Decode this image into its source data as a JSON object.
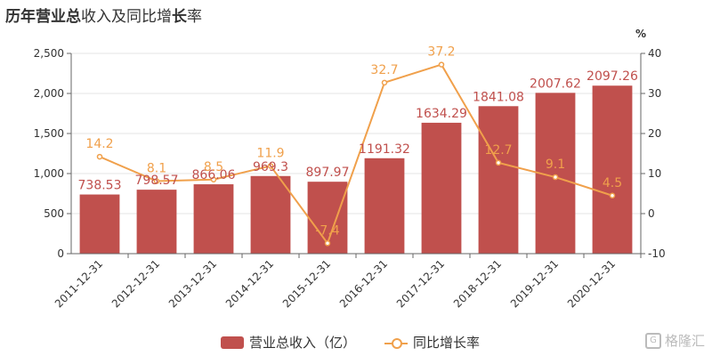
{
  "title": {
    "part1": "历年营业总",
    "part2": "收入及同比增",
    "part3": "长",
    "part4": "率"
  },
  "watermark": "格隆汇",
  "colors": {
    "bar": "#c0504d",
    "line": "#f0a04b",
    "bar_label": "#c0504d",
    "line_label": "#f0a04b"
  },
  "chart_data": {
    "type": "bar",
    "categories": [
      "2011-12-31",
      "2012-12-31",
      "2013-12-31",
      "2014-12-31",
      "2015-12-31",
      "2016-12-31",
      "2017-12-31",
      "2018-12-31",
      "2019-12-31",
      "2020-12-31"
    ],
    "series": [
      {
        "name": "营业总收入（亿）",
        "type": "bar",
        "axis": "left",
        "values": [
          738.53,
          798.57,
          866.06,
          969.3,
          897.97,
          1191.32,
          1634.29,
          1841.08,
          2007.62,
          2097.26
        ],
        "labels": [
          "738.53",
          "798.57",
          "866.06",
          "969.3",
          "897.97",
          "1191.32",
          "1634.29",
          "1841.08",
          "2007.62",
          "2097.26"
        ]
      },
      {
        "name": "同比增长率",
        "type": "line",
        "axis": "right",
        "values": [
          14.2,
          8.1,
          8.5,
          11.9,
          -7.4,
          32.7,
          37.2,
          12.7,
          9.1,
          4.5
        ],
        "labels": [
          "14.2",
          "8.1",
          "8.5",
          "11.9",
          "-7.4",
          "32.7",
          "37.2",
          "12.7",
          "9.1",
          "4.5"
        ]
      }
    ],
    "y_left": {
      "ylim": [
        0,
        2500
      ],
      "ticks": [
        0,
        500,
        1000,
        1500,
        2000,
        2500
      ],
      "tick_labels": [
        "0",
        "500",
        "1,000",
        "1,500",
        "2,000",
        "2,500"
      ]
    },
    "y_right": {
      "ylim": [
        -10,
        40
      ],
      "ticks": [
        -10,
        0,
        10,
        20,
        30,
        40
      ],
      "tick_labels": [
        "-10",
        "0",
        "10",
        "20",
        "30",
        "40"
      ],
      "unit_label": "%"
    },
    "grid": "horizontal",
    "legend_position": "bottom"
  }
}
